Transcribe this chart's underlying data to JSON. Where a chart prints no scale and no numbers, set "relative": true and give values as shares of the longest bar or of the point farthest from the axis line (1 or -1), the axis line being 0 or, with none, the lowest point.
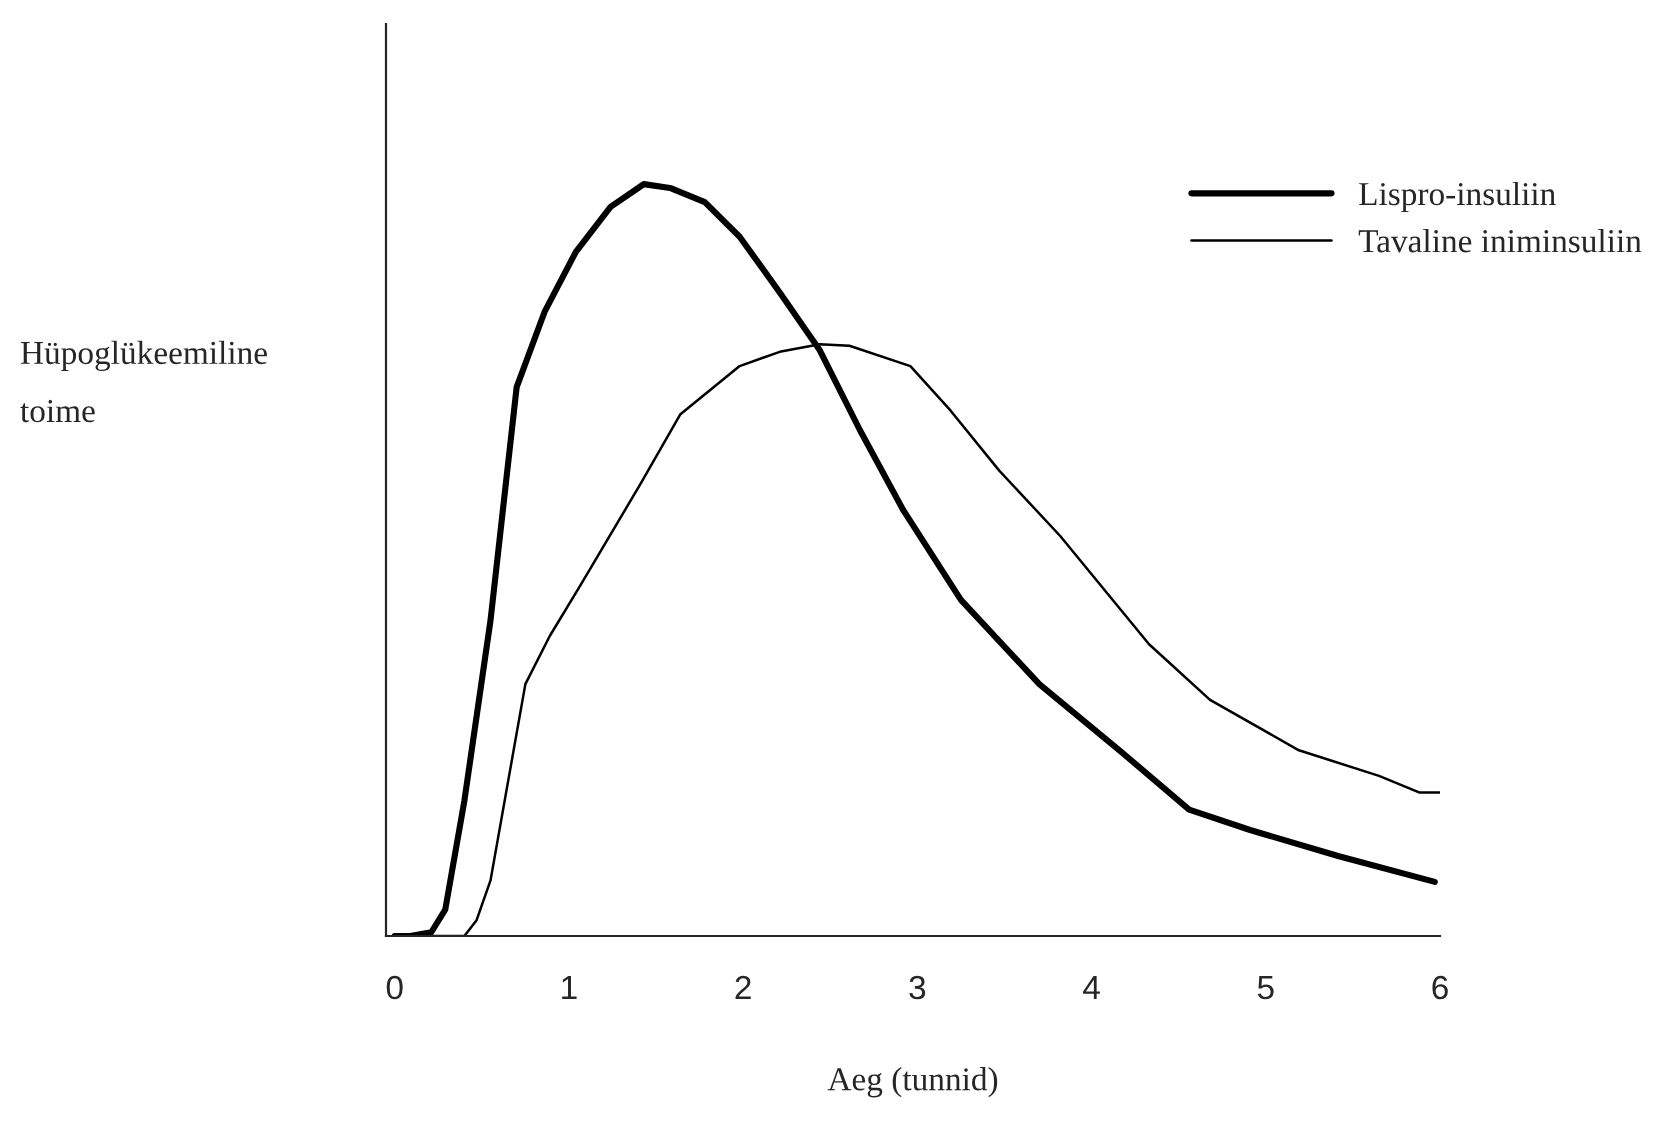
{
  "chart_data": {
    "type": "line",
    "relative": true,
    "xlabel": "Aeg (tunnid)",
    "ylabel": "Hüpoglükeemiline\ntoime",
    "xlim": [
      -0.05,
      6
    ],
    "xticks": [
      0,
      1,
      2,
      3,
      4,
      5,
      6
    ],
    "legend": "top right",
    "grid": false,
    "series": [
      {
        "name": "Lispro-insuliin",
        "color": "#000000",
        "x": [
          0,
          0.09,
          0.21,
          0.29,
          0.4,
          0.55,
          0.7,
          0.86,
          1.04,
          1.24,
          1.43,
          1.58,
          1.78,
          1.98,
          2.21,
          2.44,
          2.67,
          2.92,
          3.25,
          3.7,
          4.16,
          4.56,
          4.91,
          5.42,
          5.97
        ],
        "values": [
          0,
          0,
          0.005,
          0.035,
          0.18,
          0.42,
          0.73,
          0.83,
          0.91,
          0.97,
          1.0,
          0.995,
          0.976,
          0.93,
          0.856,
          0.779,
          0.673,
          0.566,
          0.447,
          0.335,
          0.247,
          0.168,
          0.141,
          0.106,
          0.072
        ]
      },
      {
        "name": "Tavaline iniminsuliin",
        "color": "#000000",
        "x": [
          0,
          0.4,
          0.47,
          0.55,
          0.75,
          0.89,
          1.07,
          1.41,
          1.64,
          1.98,
          2.21,
          2.44,
          2.61,
          2.96,
          3.19,
          3.47,
          3.82,
          4.33,
          4.68,
          5.19,
          5.65,
          5.88,
          6.0
        ],
        "values": [
          0,
          0,
          0.021,
          0.074,
          0.335,
          0.399,
          0.468,
          0.601,
          0.694,
          0.758,
          0.777,
          0.787,
          0.785,
          0.758,
          0.699,
          0.619,
          0.532,
          0.388,
          0.314,
          0.247,
          0.213,
          0.191,
          0.191
        ]
      }
    ]
  }
}
